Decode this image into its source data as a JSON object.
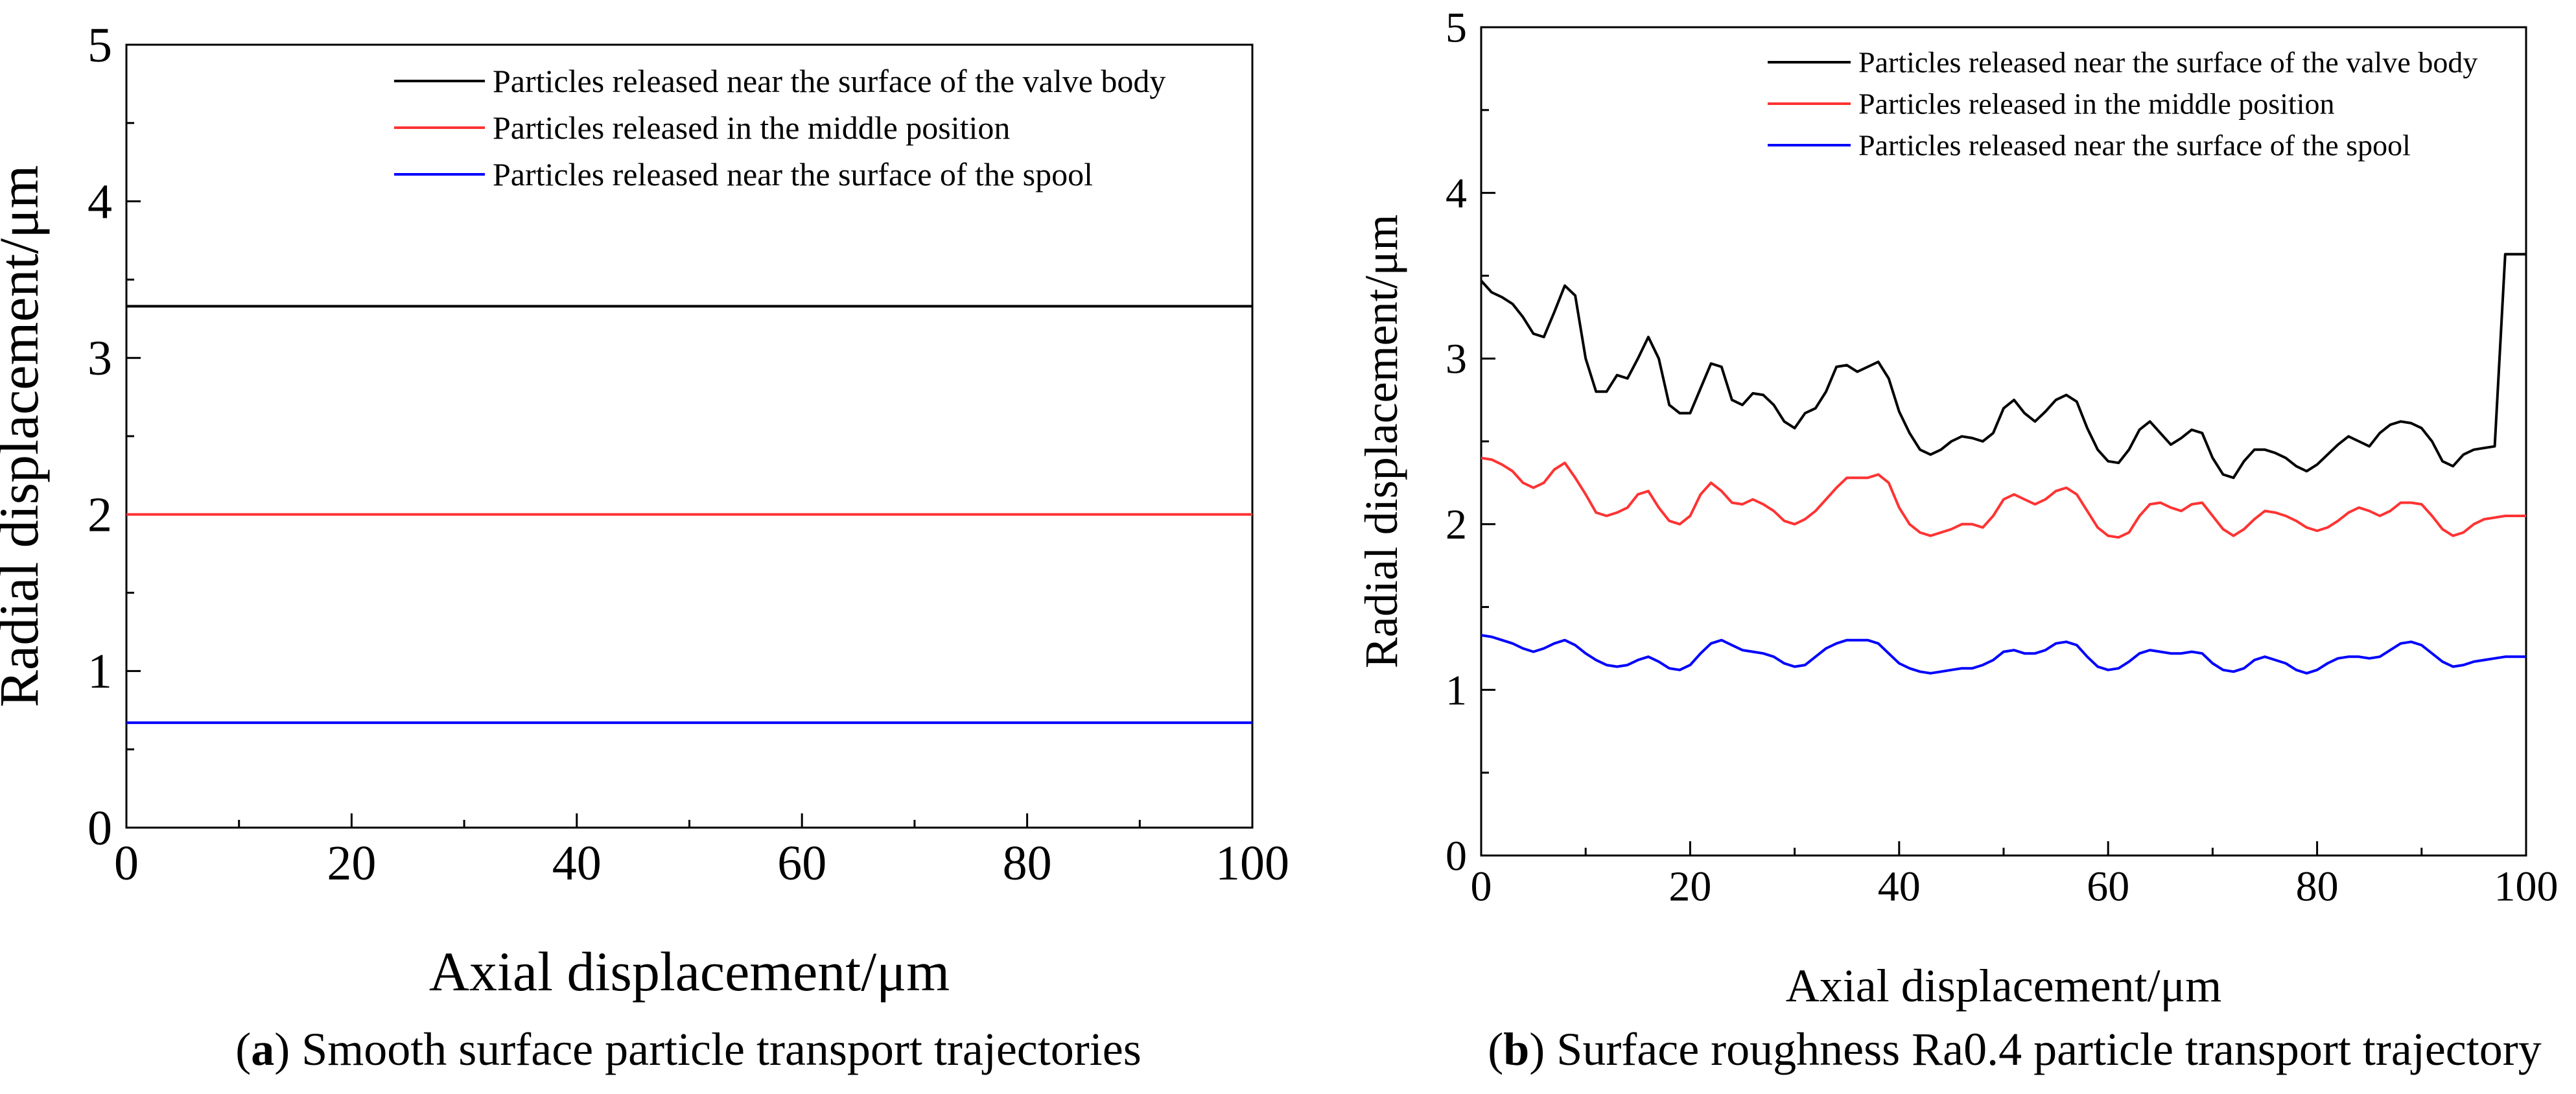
{
  "chart_data": [
    {
      "type": "line",
      "panel_letter": "a",
      "caption": "Smooth surface particle transport trajectories",
      "xlabel": "Axial displacement/μm",
      "ylabel": "Radial displacement/μm",
      "xlim": [
        0,
        100
      ],
      "ylim": [
        0,
        5
      ],
      "xticks": [
        0,
        20,
        40,
        60,
        80,
        100
      ],
      "yticks": [
        0,
        1,
        2,
        3,
        4,
        5
      ],
      "legend_position": "top-right",
      "grid": false,
      "series": [
        {
          "name": "Particles released near the surface of the valve body",
          "color": "#000000",
          "x": [
            0,
            100
          ],
          "y": [
            3.33,
            3.33
          ]
        },
        {
          "name": "Particles released in the middle position",
          "color": "#ff3333",
          "x": [
            0,
            100
          ],
          "y": [
            2.0,
            2.0
          ]
        },
        {
          "name": "Particles released near the surface of the spool",
          "color": "#0000ff",
          "x": [
            0,
            100
          ],
          "y": [
            0.67,
            0.67
          ]
        }
      ]
    },
    {
      "type": "line",
      "panel_letter": "b",
      "caption": "Surface roughness Ra0.4 particle transport trajectory",
      "xlabel": "Axial displacement/μm",
      "ylabel": "Radial displacement/μm",
      "xlim": [
        0,
        100
      ],
      "ylim": [
        0,
        5
      ],
      "xticks": [
        0,
        20,
        40,
        60,
        80,
        100
      ],
      "yticks": [
        0,
        1,
        2,
        3,
        4,
        5
      ],
      "legend_position": "top-right",
      "grid": false,
      "series": [
        {
          "name": "Particles released near the surface of the valve body",
          "color": "#000000",
          "x": [
            0,
            1,
            2,
            3,
            4,
            5,
            6,
            7,
            8,
            9,
            10,
            11,
            12,
            13,
            14,
            15,
            16,
            17,
            18,
            19,
            20,
            21,
            22,
            23,
            24,
            25,
            26,
            27,
            28,
            29,
            30,
            31,
            32,
            33,
            34,
            35,
            36,
            37,
            38,
            39,
            40,
            41,
            42,
            43,
            44,
            45,
            46,
            47,
            48,
            49,
            50,
            51,
            52,
            53,
            54,
            55,
            56,
            57,
            58,
            59,
            60,
            61,
            62,
            63,
            64,
            65,
            66,
            67,
            68,
            69,
            70,
            71,
            72,
            73,
            74,
            75,
            76,
            77,
            78,
            79,
            80,
            81,
            82,
            83,
            84,
            85,
            86,
            87,
            88,
            89,
            90,
            91,
            92,
            93,
            94,
            95,
            96,
            97,
            98,
            99,
            100
          ],
          "y": [
            3.47,
            3.4,
            3.37,
            3.33,
            3.25,
            3.15,
            3.13,
            3.28,
            3.44,
            3.38,
            3.0,
            2.8,
            2.8,
            2.9,
            2.88,
            3.0,
            3.13,
            3.0,
            2.72,
            2.67,
            2.67,
            2.82,
            2.97,
            2.95,
            2.75,
            2.72,
            2.79,
            2.78,
            2.72,
            2.62,
            2.58,
            2.67,
            2.7,
            2.8,
            2.95,
            2.96,
            2.92,
            2.95,
            2.98,
            2.88,
            2.68,
            2.55,
            2.45,
            2.42,
            2.45,
            2.5,
            2.53,
            2.52,
            2.5,
            2.55,
            2.7,
            2.75,
            2.67,
            2.62,
            2.68,
            2.75,
            2.78,
            2.74,
            2.58,
            2.45,
            2.38,
            2.37,
            2.45,
            2.57,
            2.62,
            2.55,
            2.48,
            2.52,
            2.57,
            2.55,
            2.4,
            2.3,
            2.28,
            2.38,
            2.45,
            2.45,
            2.43,
            2.4,
            2.35,
            2.32,
            2.36,
            2.42,
            2.48,
            2.53,
            2.5,
            2.47,
            2.55,
            2.6,
            2.62,
            2.61,
            2.58,
            2.5,
            2.38,
            2.35,
            2.42,
            2.45,
            2.46,
            2.47,
            3.63,
            3.63,
            3.63
          ]
        },
        {
          "name": "Particles released in the middle position",
          "color": "#ff3333",
          "x": [
            0,
            1,
            2,
            3,
            4,
            5,
            6,
            7,
            8,
            9,
            10,
            11,
            12,
            13,
            14,
            15,
            16,
            17,
            18,
            19,
            20,
            21,
            22,
            23,
            24,
            25,
            26,
            27,
            28,
            29,
            30,
            31,
            32,
            33,
            34,
            35,
            36,
            37,
            38,
            39,
            40,
            41,
            42,
            43,
            44,
            45,
            46,
            47,
            48,
            49,
            50,
            51,
            52,
            53,
            54,
            55,
            56,
            57,
            58,
            59,
            60,
            61,
            62,
            63,
            64,
            65,
            66,
            67,
            68,
            69,
            70,
            71,
            72,
            73,
            74,
            75,
            76,
            77,
            78,
            79,
            80,
            81,
            82,
            83,
            84,
            85,
            86,
            87,
            88,
            89,
            90,
            91,
            92,
            93,
            94,
            95,
            96,
            97,
            98,
            99,
            100
          ],
          "y": [
            2.4,
            2.39,
            2.36,
            2.32,
            2.25,
            2.22,
            2.25,
            2.33,
            2.37,
            2.28,
            2.18,
            2.07,
            2.05,
            2.07,
            2.1,
            2.18,
            2.2,
            2.1,
            2.02,
            2.0,
            2.05,
            2.18,
            2.25,
            2.2,
            2.13,
            2.12,
            2.15,
            2.12,
            2.08,
            2.02,
            2.0,
            2.03,
            2.08,
            2.15,
            2.22,
            2.28,
            2.28,
            2.28,
            2.3,
            2.25,
            2.1,
            2.0,
            1.95,
            1.93,
            1.95,
            1.97,
            2.0,
            2.0,
            1.98,
            2.05,
            2.15,
            2.18,
            2.15,
            2.12,
            2.15,
            2.2,
            2.22,
            2.18,
            2.08,
            1.98,
            1.93,
            1.92,
            1.95,
            2.05,
            2.12,
            2.13,
            2.1,
            2.08,
            2.12,
            2.13,
            2.05,
            1.97,
            1.93,
            1.97,
            2.03,
            2.08,
            2.07,
            2.05,
            2.02,
            1.98,
            1.96,
            1.98,
            2.02,
            2.07,
            2.1,
            2.08,
            2.05,
            2.08,
            2.13,
            2.13,
            2.12,
            2.05,
            1.97,
            1.93,
            1.95,
            2.0,
            2.03,
            2.04,
            2.05,
            2.05,
            2.05
          ]
        },
        {
          "name": "Particles released near the surface of the spool",
          "color": "#0000ff",
          "x": [
            0,
            1,
            2,
            3,
            4,
            5,
            6,
            7,
            8,
            9,
            10,
            11,
            12,
            13,
            14,
            15,
            16,
            17,
            18,
            19,
            20,
            21,
            22,
            23,
            24,
            25,
            26,
            27,
            28,
            29,
            30,
            31,
            32,
            33,
            34,
            35,
            36,
            37,
            38,
            39,
            40,
            41,
            42,
            43,
            44,
            45,
            46,
            47,
            48,
            49,
            50,
            51,
            52,
            53,
            54,
            55,
            56,
            57,
            58,
            59,
            60,
            61,
            62,
            63,
            64,
            65,
            66,
            67,
            68,
            69,
            70,
            71,
            72,
            73,
            74,
            75,
            76,
            77,
            78,
            79,
            80,
            81,
            82,
            83,
            84,
            85,
            86,
            87,
            88,
            89,
            90,
            91,
            92,
            93,
            94,
            95,
            96,
            97,
            98,
            99,
            100
          ],
          "y": [
            1.33,
            1.32,
            1.3,
            1.28,
            1.25,
            1.23,
            1.25,
            1.28,
            1.3,
            1.27,
            1.22,
            1.18,
            1.15,
            1.14,
            1.15,
            1.18,
            1.2,
            1.17,
            1.13,
            1.12,
            1.15,
            1.22,
            1.28,
            1.3,
            1.27,
            1.24,
            1.23,
            1.22,
            1.2,
            1.16,
            1.14,
            1.15,
            1.2,
            1.25,
            1.28,
            1.3,
            1.3,
            1.3,
            1.28,
            1.22,
            1.16,
            1.13,
            1.11,
            1.1,
            1.11,
            1.12,
            1.13,
            1.13,
            1.15,
            1.18,
            1.23,
            1.24,
            1.22,
            1.22,
            1.24,
            1.28,
            1.29,
            1.27,
            1.2,
            1.14,
            1.12,
            1.13,
            1.17,
            1.22,
            1.24,
            1.23,
            1.22,
            1.22,
            1.23,
            1.22,
            1.16,
            1.12,
            1.11,
            1.13,
            1.18,
            1.2,
            1.18,
            1.16,
            1.12,
            1.1,
            1.12,
            1.16,
            1.19,
            1.2,
            1.2,
            1.19,
            1.2,
            1.24,
            1.28,
            1.29,
            1.27,
            1.22,
            1.17,
            1.14,
            1.15,
            1.17,
            1.18,
            1.19,
            1.2,
            1.2,
            1.2
          ]
        }
      ]
    }
  ]
}
